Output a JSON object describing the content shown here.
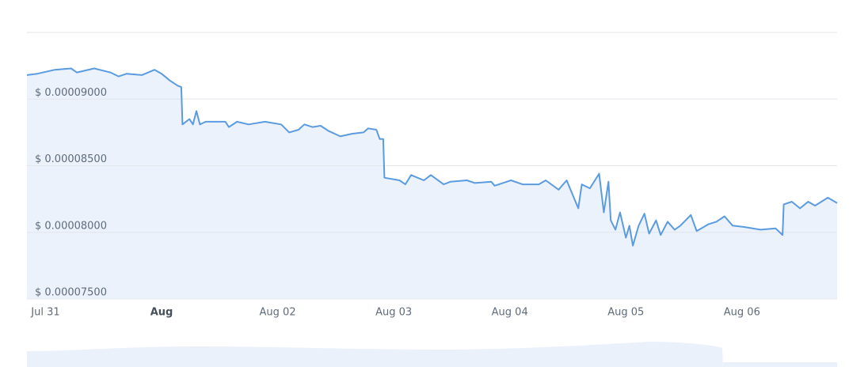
{
  "chart_data": {
    "type": "area",
    "x": [
      -0.16,
      -0.07,
      0.08,
      0.22,
      0.27,
      0.42,
      0.56,
      0.63,
      0.7,
      0.83,
      0.94,
      1.0,
      1.07,
      1.14,
      1.17,
      1.18,
      1.24,
      1.27,
      1.3,
      1.33,
      1.38,
      1.55,
      1.58,
      1.65,
      1.75,
      1.89,
      2.03,
      2.1,
      2.18,
      2.23,
      2.3,
      2.37,
      2.44,
      2.54,
      2.64,
      2.74,
      2.78,
      2.85,
      2.88,
      2.91,
      2.92,
      3.05,
      3.1,
      3.15,
      3.26,
      3.32,
      3.43,
      3.49,
      3.63,
      3.7,
      3.84,
      3.87,
      4.01,
      4.11,
      4.25,
      4.31,
      4.42,
      4.49,
      4.59,
      4.62,
      4.69,
      4.77,
      4.81,
      4.85,
      4.87,
      4.91,
      4.95,
      5.0,
      5.03,
      5.06,
      5.11,
      5.16,
      5.2,
      5.26,
      5.3,
      5.36,
      5.42,
      5.47,
      5.56,
      5.61,
      5.71,
      5.78,
      5.85,
      5.92,
      6.02,
      6.16,
      6.29,
      6.35,
      6.36,
      6.43,
      6.5,
      6.57,
      6.63,
      6.74,
      6.82
    ],
    "values": [
      9.18e-05,
      9.19e-05,
      9.22e-05,
      9.23e-05,
      9.2e-05,
      9.23e-05,
      9.2e-05,
      9.17e-05,
      9.19e-05,
      9.18e-05,
      9.22e-05,
      9.19e-05,
      9.14e-05,
      9.1e-05,
      9.09e-05,
      8.81e-05,
      8.85e-05,
      8.81e-05,
      8.91e-05,
      8.81e-05,
      8.83e-05,
      8.83e-05,
      8.79e-05,
      8.83e-05,
      8.81e-05,
      8.83e-05,
      8.81e-05,
      8.75e-05,
      8.77e-05,
      8.81e-05,
      8.79e-05,
      8.8e-05,
      8.76e-05,
      8.72e-05,
      8.74e-05,
      8.75e-05,
      8.78e-05,
      8.77e-05,
      8.7e-05,
      8.7e-05,
      8.41e-05,
      8.39e-05,
      8.36e-05,
      8.43e-05,
      8.39e-05,
      8.43e-05,
      8.36e-05,
      8.38e-05,
      8.39e-05,
      8.37e-05,
      8.38e-05,
      8.35e-05,
      8.39e-05,
      8.36e-05,
      8.36e-05,
      8.39e-05,
      8.32e-05,
      8.39e-05,
      8.18e-05,
      8.36e-05,
      8.33e-05,
      8.44e-05,
      8.15e-05,
      8.38e-05,
      8.09e-05,
      8.02e-05,
      8.15e-05,
      7.96e-05,
      8.05e-05,
      7.9e-05,
      8.05e-05,
      8.14e-05,
      7.99e-05,
      8.09e-05,
      7.98e-05,
      8.08e-05,
      8.02e-05,
      8.05e-05,
      8.13e-05,
      8.01e-05,
      8.06e-05,
      8.08e-05,
      8.12e-05,
      8.05e-05,
      8.04e-05,
      8.02e-05,
      8.03e-05,
      7.98e-05,
      8.21e-05,
      8.23e-05,
      8.18e-05,
      8.23e-05,
      8.2e-05,
      8.26e-05,
      8.22e-05
    ],
    "color": "#5b9be0",
    "xlim": [
      -0.16,
      6.82
    ],
    "xticks": [
      {
        "value": 0,
        "label": "Jul 31"
      },
      {
        "value": 1,
        "label": "Aug"
      },
      {
        "value": 2,
        "label": "Aug 02"
      },
      {
        "value": 3,
        "label": "Aug 03"
      },
      {
        "value": 4,
        "label": "Aug 04"
      },
      {
        "value": 5,
        "label": "Aug 05"
      },
      {
        "value": 6,
        "label": "Aug 06"
      }
    ],
    "ylim": [
      7.5e-05,
      9.5e-05
    ],
    "yticks": [
      {
        "value": 7.5e-05,
        "label": "$ 0.00007500"
      },
      {
        "value": 8e-05,
        "label": "$ 0.00008000"
      },
      {
        "value": 8.5e-05,
        "label": "$ 0.00008500"
      },
      {
        "value": 9e-05,
        "label": "$ 0.00009000"
      }
    ],
    "grid": true
  }
}
